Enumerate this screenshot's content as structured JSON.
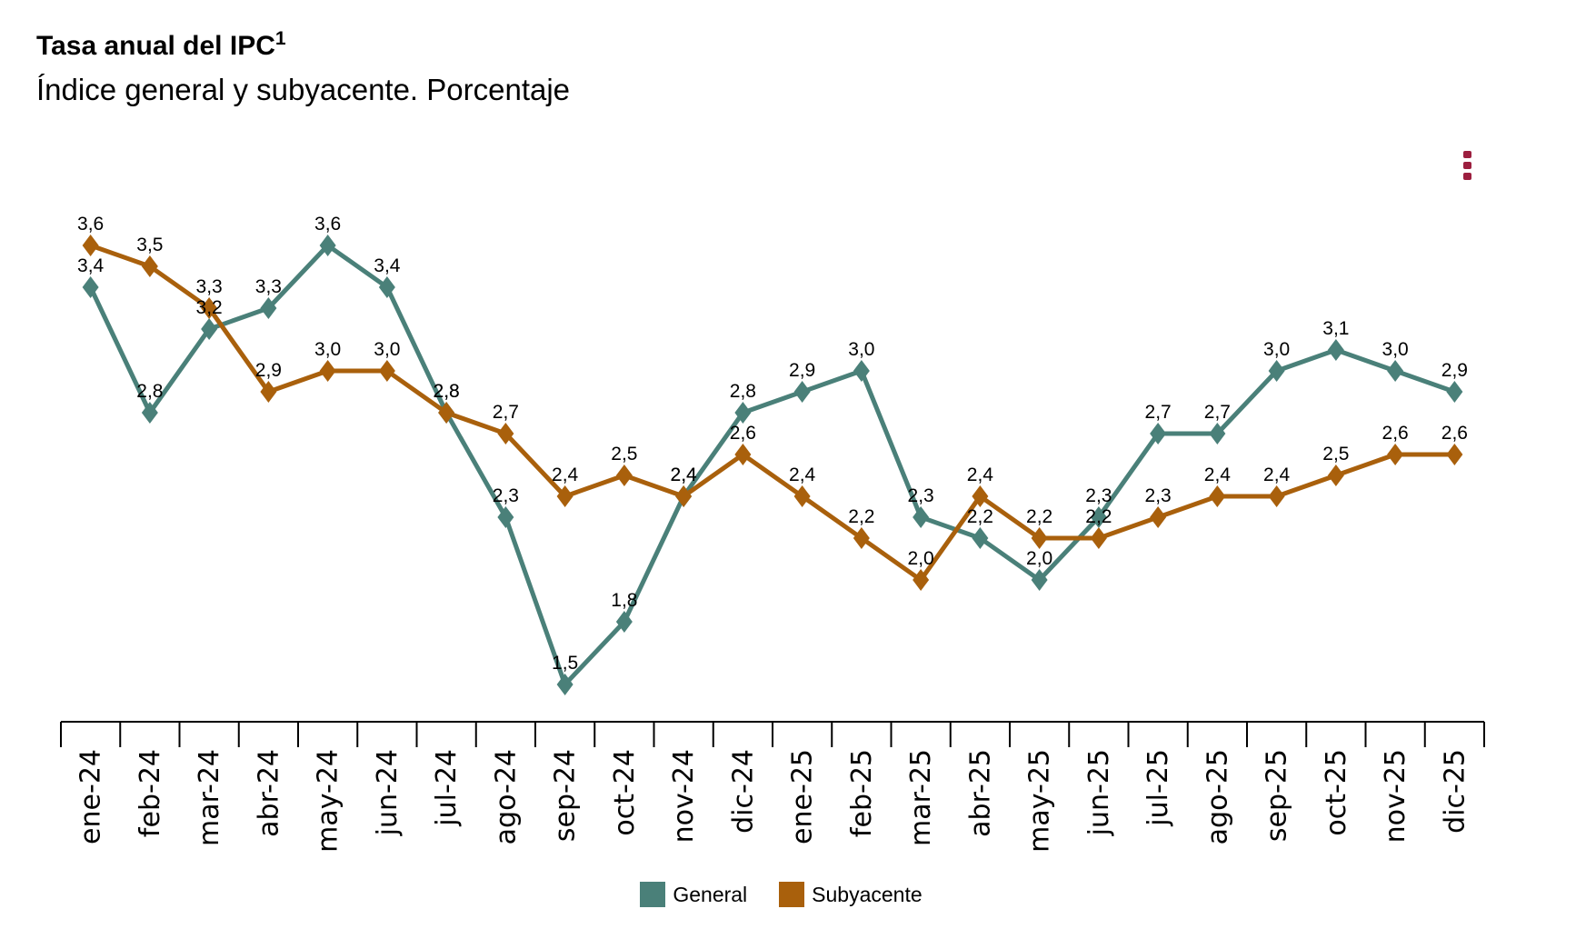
{
  "header": {
    "title": "Tasa anual del IPC",
    "title_sup": "1",
    "subtitle": "Índice general y subyacente. Porcentaje"
  },
  "menu": {
    "icon": "more-vertical-icon"
  },
  "chart_data": {
    "type": "line",
    "title": "Tasa anual del IPC",
    "subtitle": "Índice general y subyacente. Porcentaje",
    "xlabel": "",
    "ylabel": "",
    "ylim": [
      1.0,
      4.0
    ],
    "grid": false,
    "legend_position": "bottom-center",
    "categories": [
      "ene-24",
      "feb-24",
      "mar-24",
      "abr-24",
      "may-24",
      "jun-24",
      "jul-24",
      "ago-24",
      "sep-24",
      "oct-24",
      "nov-24",
      "dic-24",
      "ene-25",
      "feb-25",
      "mar-25",
      "abr-25",
      "may-25",
      "jun-25",
      "jul-25",
      "ago-25",
      "sep-25",
      "oct-25",
      "nov-25",
      "dic-25"
    ],
    "series": [
      {
        "name": "General",
        "color": "#4a8079",
        "values": [
          3.4,
          2.8,
          3.2,
          3.3,
          3.6,
          3.4,
          2.8,
          2.3,
          1.5,
          1.8,
          2.4,
          2.8,
          2.9,
          3.0,
          2.3,
          2.2,
          2.0,
          2.3,
          2.7,
          2.7,
          3.0,
          3.1,
          3.0,
          2.9
        ],
        "labels": [
          "3,4",
          "2,8",
          "3,2",
          "3,3",
          "3,6",
          "3,4",
          "2,8",
          "2,3",
          "1,5",
          "1,8",
          "2,4",
          "2,8",
          "2,9",
          "3,0",
          "2,3",
          "2,2",
          "2,0",
          "2,3",
          "2,7",
          "2,7",
          "3,0",
          "3,1",
          "3,0",
          "2,9"
        ]
      },
      {
        "name": "Subyacente",
        "color": "#a9600c",
        "values": [
          3.6,
          3.5,
          3.3,
          2.9,
          3.0,
          3.0,
          2.8,
          2.7,
          2.4,
          2.5,
          2.4,
          2.6,
          2.4,
          2.2,
          2.0,
          2.4,
          2.2,
          2.2,
          2.3,
          2.4,
          2.4,
          2.5,
          2.6,
          2.6
        ],
        "labels": [
          "3,6",
          "3,5",
          "3,3",
          "2,9",
          "3,0",
          "3,0",
          "2,8",
          "2,7",
          "2,4",
          "2,5",
          "2,4",
          "2,6",
          "2,4",
          "2,2",
          "2,0",
          "2,4",
          "2,2",
          "2,2",
          "2,3",
          "2,4",
          "2,4",
          "2,5",
          "2,6",
          "2,6"
        ]
      }
    ]
  }
}
